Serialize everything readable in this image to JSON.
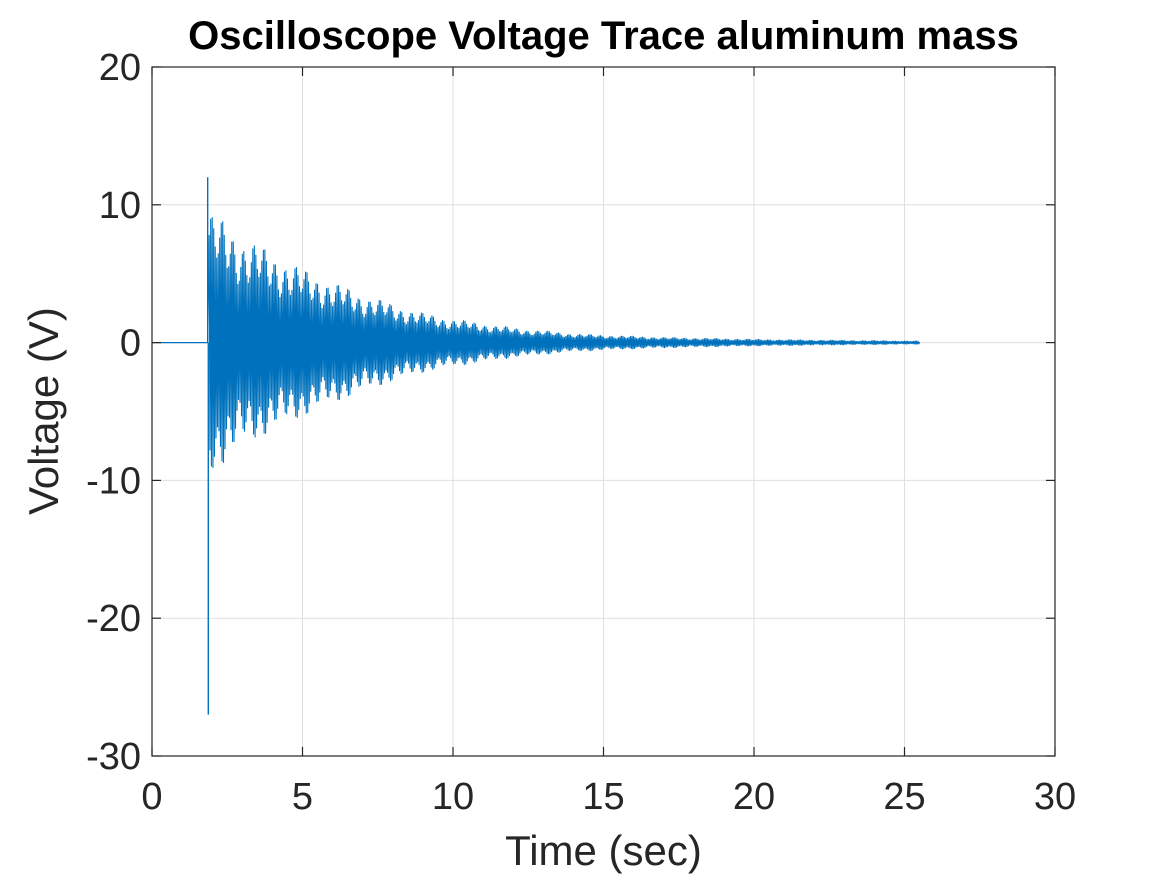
{
  "chart_data": {
    "type": "line",
    "title": "Oscilloscope Voltage Trace aluminum mass",
    "xlabel": "Time (sec)",
    "ylabel": "Voltage (V)",
    "xlim": [
      0,
      30
    ],
    "ylim": [
      -30,
      20
    ],
    "xticks": [
      0,
      5,
      10,
      15,
      20,
      25,
      30
    ],
    "yticks": [
      -30,
      -20,
      -10,
      0,
      10,
      20
    ],
    "grid": true,
    "box": true,
    "series": [
      {
        "color": "#0072BD",
        "signal": {
          "start": 0,
          "end": 25.5,
          "onset": 1.85,
          "initial_spikes": [
            {
              "t": 1.85,
              "v": 12
            },
            {
              "t": 1.87,
              "v": -27
            }
          ],
          "envelope_points": [
            {
              "t": 1.9,
              "upper": 9.5,
              "lower": -9.5
            },
            {
              "t": 2,
              "upper": 8.8,
              "lower": -8.8
            },
            {
              "t": 3,
              "upper": 7.2,
              "lower": -7.0
            },
            {
              "t": 4,
              "upper": 6.1,
              "lower": -6.0
            },
            {
              "t": 5,
              "upper": 5.0,
              "lower": -5.0
            },
            {
              "t": 6,
              "upper": 4.1,
              "lower": -4.1
            },
            {
              "t": 7,
              "upper": 3.3,
              "lower": -3.3
            },
            {
              "t": 8,
              "upper": 2.6,
              "lower": -2.6
            },
            {
              "t": 9,
              "upper": 2.0,
              "lower": -2.0
            },
            {
              "t": 10,
              "upper": 1.6,
              "lower": -1.6
            },
            {
              "t": 11,
              "upper": 1.3,
              "lower": -1.3
            },
            {
              "t": 12,
              "upper": 1.0,
              "lower": -1.0
            },
            {
              "t": 13,
              "upper": 0.8,
              "lower": -0.8
            },
            {
              "t": 14,
              "upper": 0.6,
              "lower": -0.6
            },
            {
              "t": 15,
              "upper": 0.5,
              "lower": -0.5
            },
            {
              "t": 17,
              "upper": 0.35,
              "lower": -0.35
            },
            {
              "t": 20,
              "upper": 0.22,
              "lower": -0.22
            },
            {
              "t": 23,
              "upper": 0.15,
              "lower": -0.15
            },
            {
              "t": 25.5,
              "upper": 0.1,
              "lower": -0.1
            }
          ]
        }
      }
    ]
  }
}
